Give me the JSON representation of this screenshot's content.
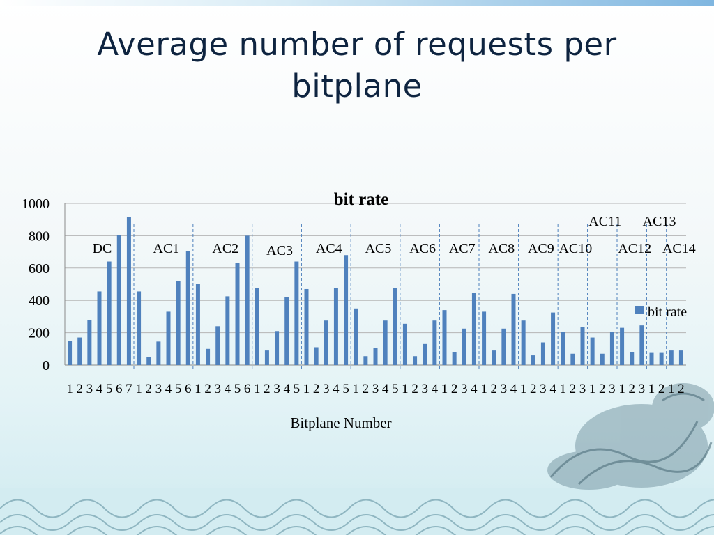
{
  "slide": {
    "title_line1": "Average number of requests per",
    "title_line2": "bitplane"
  },
  "chart_data": {
    "type": "bar",
    "title": "bit rate",
    "xlabel": "Bitplane Number",
    "ylabel": "",
    "ylim": [
      0,
      1000
    ],
    "yticks": [
      0,
      200,
      400,
      600,
      800,
      1000
    ],
    "grid": true,
    "legend": "right",
    "bar_color": "#4f81bd",
    "series": [
      {
        "name": "bit rate",
        "values": [
          150,
          170,
          280,
          455,
          640,
          805,
          915,
          455,
          50,
          145,
          330,
          520,
          705,
          500,
          100,
          240,
          425,
          630,
          800,
          475,
          90,
          210,
          420,
          640,
          470,
          110,
          275,
          475,
          680,
          350,
          55,
          105,
          275,
          475,
          255,
          55,
          130,
          275,
          340,
          80,
          225,
          445,
          330,
          90,
          225,
          440,
          275,
          60,
          140,
          325,
          205,
          70,
          235,
          170,
          70,
          205,
          230,
          80,
          245,
          75,
          75,
          90,
          90
        ]
      }
    ],
    "categories": [
      "1",
      "2",
      "3",
      "4",
      "5",
      "6",
      "7",
      "1",
      "2",
      "3",
      "4",
      "5",
      "6",
      "1",
      "2",
      "3",
      "4",
      "5",
      "6",
      "1",
      "2",
      "3",
      "4",
      "5",
      "1",
      "2",
      "3",
      "4",
      "5",
      "1",
      "2",
      "3",
      "4",
      "5",
      "1",
      "2",
      "3",
      "4",
      "1",
      "2",
      "3",
      "4",
      "1",
      "2",
      "3",
      "4",
      "1",
      "2",
      "3",
      "4",
      "1",
      "2",
      "3",
      "1",
      "2",
      "3",
      "1",
      "2",
      "3",
      "1",
      "2",
      "1",
      "2"
    ],
    "groups": [
      {
        "label": "DC",
        "count": 7
      },
      {
        "label": "AC1",
        "count": 6
      },
      {
        "label": "AC2",
        "count": 6
      },
      {
        "label": "AC3",
        "count": 5
      },
      {
        "label": "AC4",
        "count": 5
      },
      {
        "label": "AC5",
        "count": 5
      },
      {
        "label": "AC6",
        "count": 4
      },
      {
        "label": "AC7",
        "count": 4
      },
      {
        "label": "AC8",
        "count": 4
      },
      {
        "label": "AC9",
        "count": 4
      },
      {
        "label": "AC10",
        "count": 3
      },
      {
        "label": "AC11",
        "count": 3
      },
      {
        "label": "AC12",
        "count": 3
      },
      {
        "label": "AC13",
        "count": 2
      },
      {
        "label": "AC14",
        "count": 2
      }
    ]
  }
}
